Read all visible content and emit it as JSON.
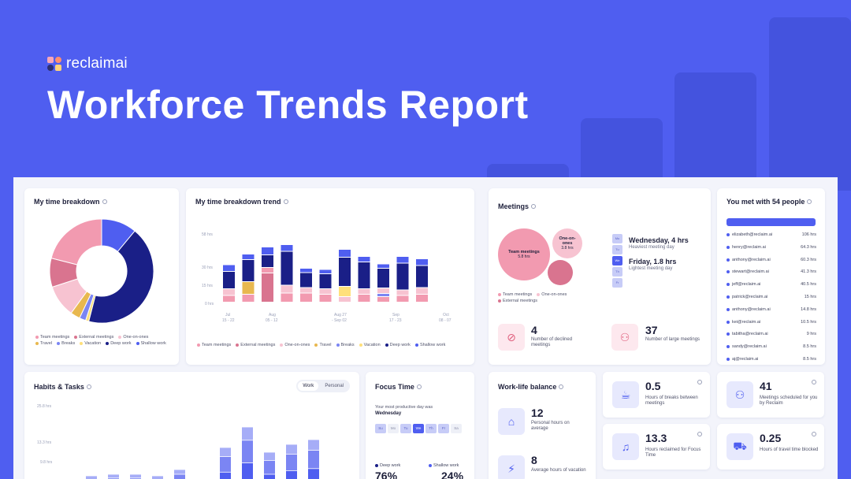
{
  "brand": {
    "name": "reclaimai"
  },
  "hero": {
    "title": "Workforce Trends Report"
  },
  "time_breakdown": {
    "title": "My time breakdown",
    "legend": [
      "Team meetings",
      "External meetings",
      "One-on-ones",
      "Travel",
      "Breaks",
      "Vacation",
      "Deep work",
      "Shallow work"
    ],
    "colors": {
      "team": "#f29ab0",
      "external": "#d9748f",
      "one_on_one": "#f7c3d1",
      "travel": "#e8b84f",
      "breaks": "#7b85f3",
      "vacation": "#ffe07a",
      "deep": "#1a1f87",
      "shallow": "#4f5ef0"
    },
    "donut_shares": [
      {
        "name": "Shallow work",
        "value": 11
      },
      {
        "name": "Deep work",
        "value": 43
      },
      {
        "name": "Vacation",
        "value": 1
      },
      {
        "name": "Breaks",
        "value": 2
      },
      {
        "name": "Travel",
        "value": 3
      },
      {
        "name": "One-on-ones",
        "value": 10
      },
      {
        "name": "External meetings",
        "value": 9
      },
      {
        "name": "Team meetings",
        "value": 21
      }
    ]
  },
  "trend": {
    "title": "My time breakdown trend",
    "legend": [
      "Team meetings",
      "External meetings",
      "One-on-ones",
      "Travel",
      "Breaks",
      "Vacation",
      "Deep work",
      "Shallow work"
    ],
    "yticks": [
      "58 hrs",
      "30 hrs",
      "15 hrs",
      "0 hrs"
    ],
    "xticks": [
      {
        "top": "Jul",
        "bottom": "15 - 22"
      },
      {
        "top": "Aug",
        "bottom": "05 - 12"
      },
      {
        "top": "Aug 27",
        "bottom": "- Sep 02"
      },
      {
        "top": "Sep",
        "bottom": "17 - 23"
      },
      {
        "top": "Oct",
        "bottom": "08 - 07"
      }
    ]
  },
  "meetings": {
    "title": "Meetings",
    "bubbles": [
      {
        "label": "Team meetings",
        "value": "5.8 hrs"
      },
      {
        "label": "One-on-ones",
        "value": "3.8 hrs"
      }
    ],
    "days": [
      "Mo",
      "Tu",
      "We",
      "Th",
      "Fr"
    ],
    "heaviest": {
      "value": "Wednesday, 4 hrs",
      "label": "Heaviest meeting day"
    },
    "lightest": {
      "value": "Friday, 1.8 hrs",
      "label": "Lightest meeting day"
    },
    "legend": [
      "Team meetings",
      "One-on-ones",
      "External meetings"
    ],
    "declined": {
      "value": "4",
      "label": "Number of declined meetings"
    },
    "large": {
      "value": "37",
      "label": "Number of large meetings"
    }
  },
  "people": {
    "title": "You met with 54 people",
    "rows": [
      {
        "email": "elizabeth@reclaim.ai",
        "hours": "106 hrs"
      },
      {
        "email": "henry@reclaim.ai",
        "hours": "64.3 hrs"
      },
      {
        "email": "anthony@reclaim.ai",
        "hours": "60.3 hrs"
      },
      {
        "email": "stewart@reclaim.ai",
        "hours": "41.3 hrs"
      },
      {
        "email": "jeff@reclaim.ai",
        "hours": "40.5 hrs"
      },
      {
        "email": "patrick@reclaim.ai",
        "hours": "15 hrs"
      },
      {
        "email": "anthony@reclaim.ai",
        "hours": "14.8 hrs"
      },
      {
        "email": "kei@reclaim.ai",
        "hours": "10.5 hrs"
      },
      {
        "email": "tabitha@reclaim.ai",
        "hours": "9 hrs"
      },
      {
        "email": "sandy@reclaim.ai",
        "hours": "8.5 hrs"
      },
      {
        "email": "aj@reclaim.ai",
        "hours": "8.5 hrs"
      }
    ]
  },
  "habits": {
    "title": "Habits & Tasks",
    "toggle": [
      "Work",
      "Personal"
    ],
    "yticks": [
      "25.8 hrs",
      "13.3 hrs",
      "9.8 hrs"
    ]
  },
  "focus": {
    "title": "Focus Time",
    "prompt": "Your most productive day was",
    "day": "Wednesday",
    "week": [
      "Su",
      "Mo",
      "Tu",
      "We",
      "Th",
      "Fr",
      "Sa"
    ],
    "deep_label": "Deep work",
    "shallow_label": "Shallow work",
    "deep_pct": "76%",
    "shallow_pct": "24%"
  },
  "wlb": {
    "title": "Work-life balance",
    "personal": {
      "value": "12",
      "label": "Personal hours on average"
    },
    "vacation": {
      "value": "8",
      "label": "Average hours of vacation"
    }
  },
  "minis": [
    {
      "value": "0.5",
      "label": "Hours of breaks between meetings",
      "icon": "coffee-icon"
    },
    {
      "value": "41",
      "label": "Meetings scheduled for you by Reclaim",
      "icon": "group-icon"
    },
    {
      "value": "13.3",
      "label": "Hours reclaimed for Focus Time",
      "icon": "headphones-icon"
    },
    {
      "value": "0.25",
      "label": "Hours of travel time blocked",
      "icon": "car-icon"
    }
  ]
}
